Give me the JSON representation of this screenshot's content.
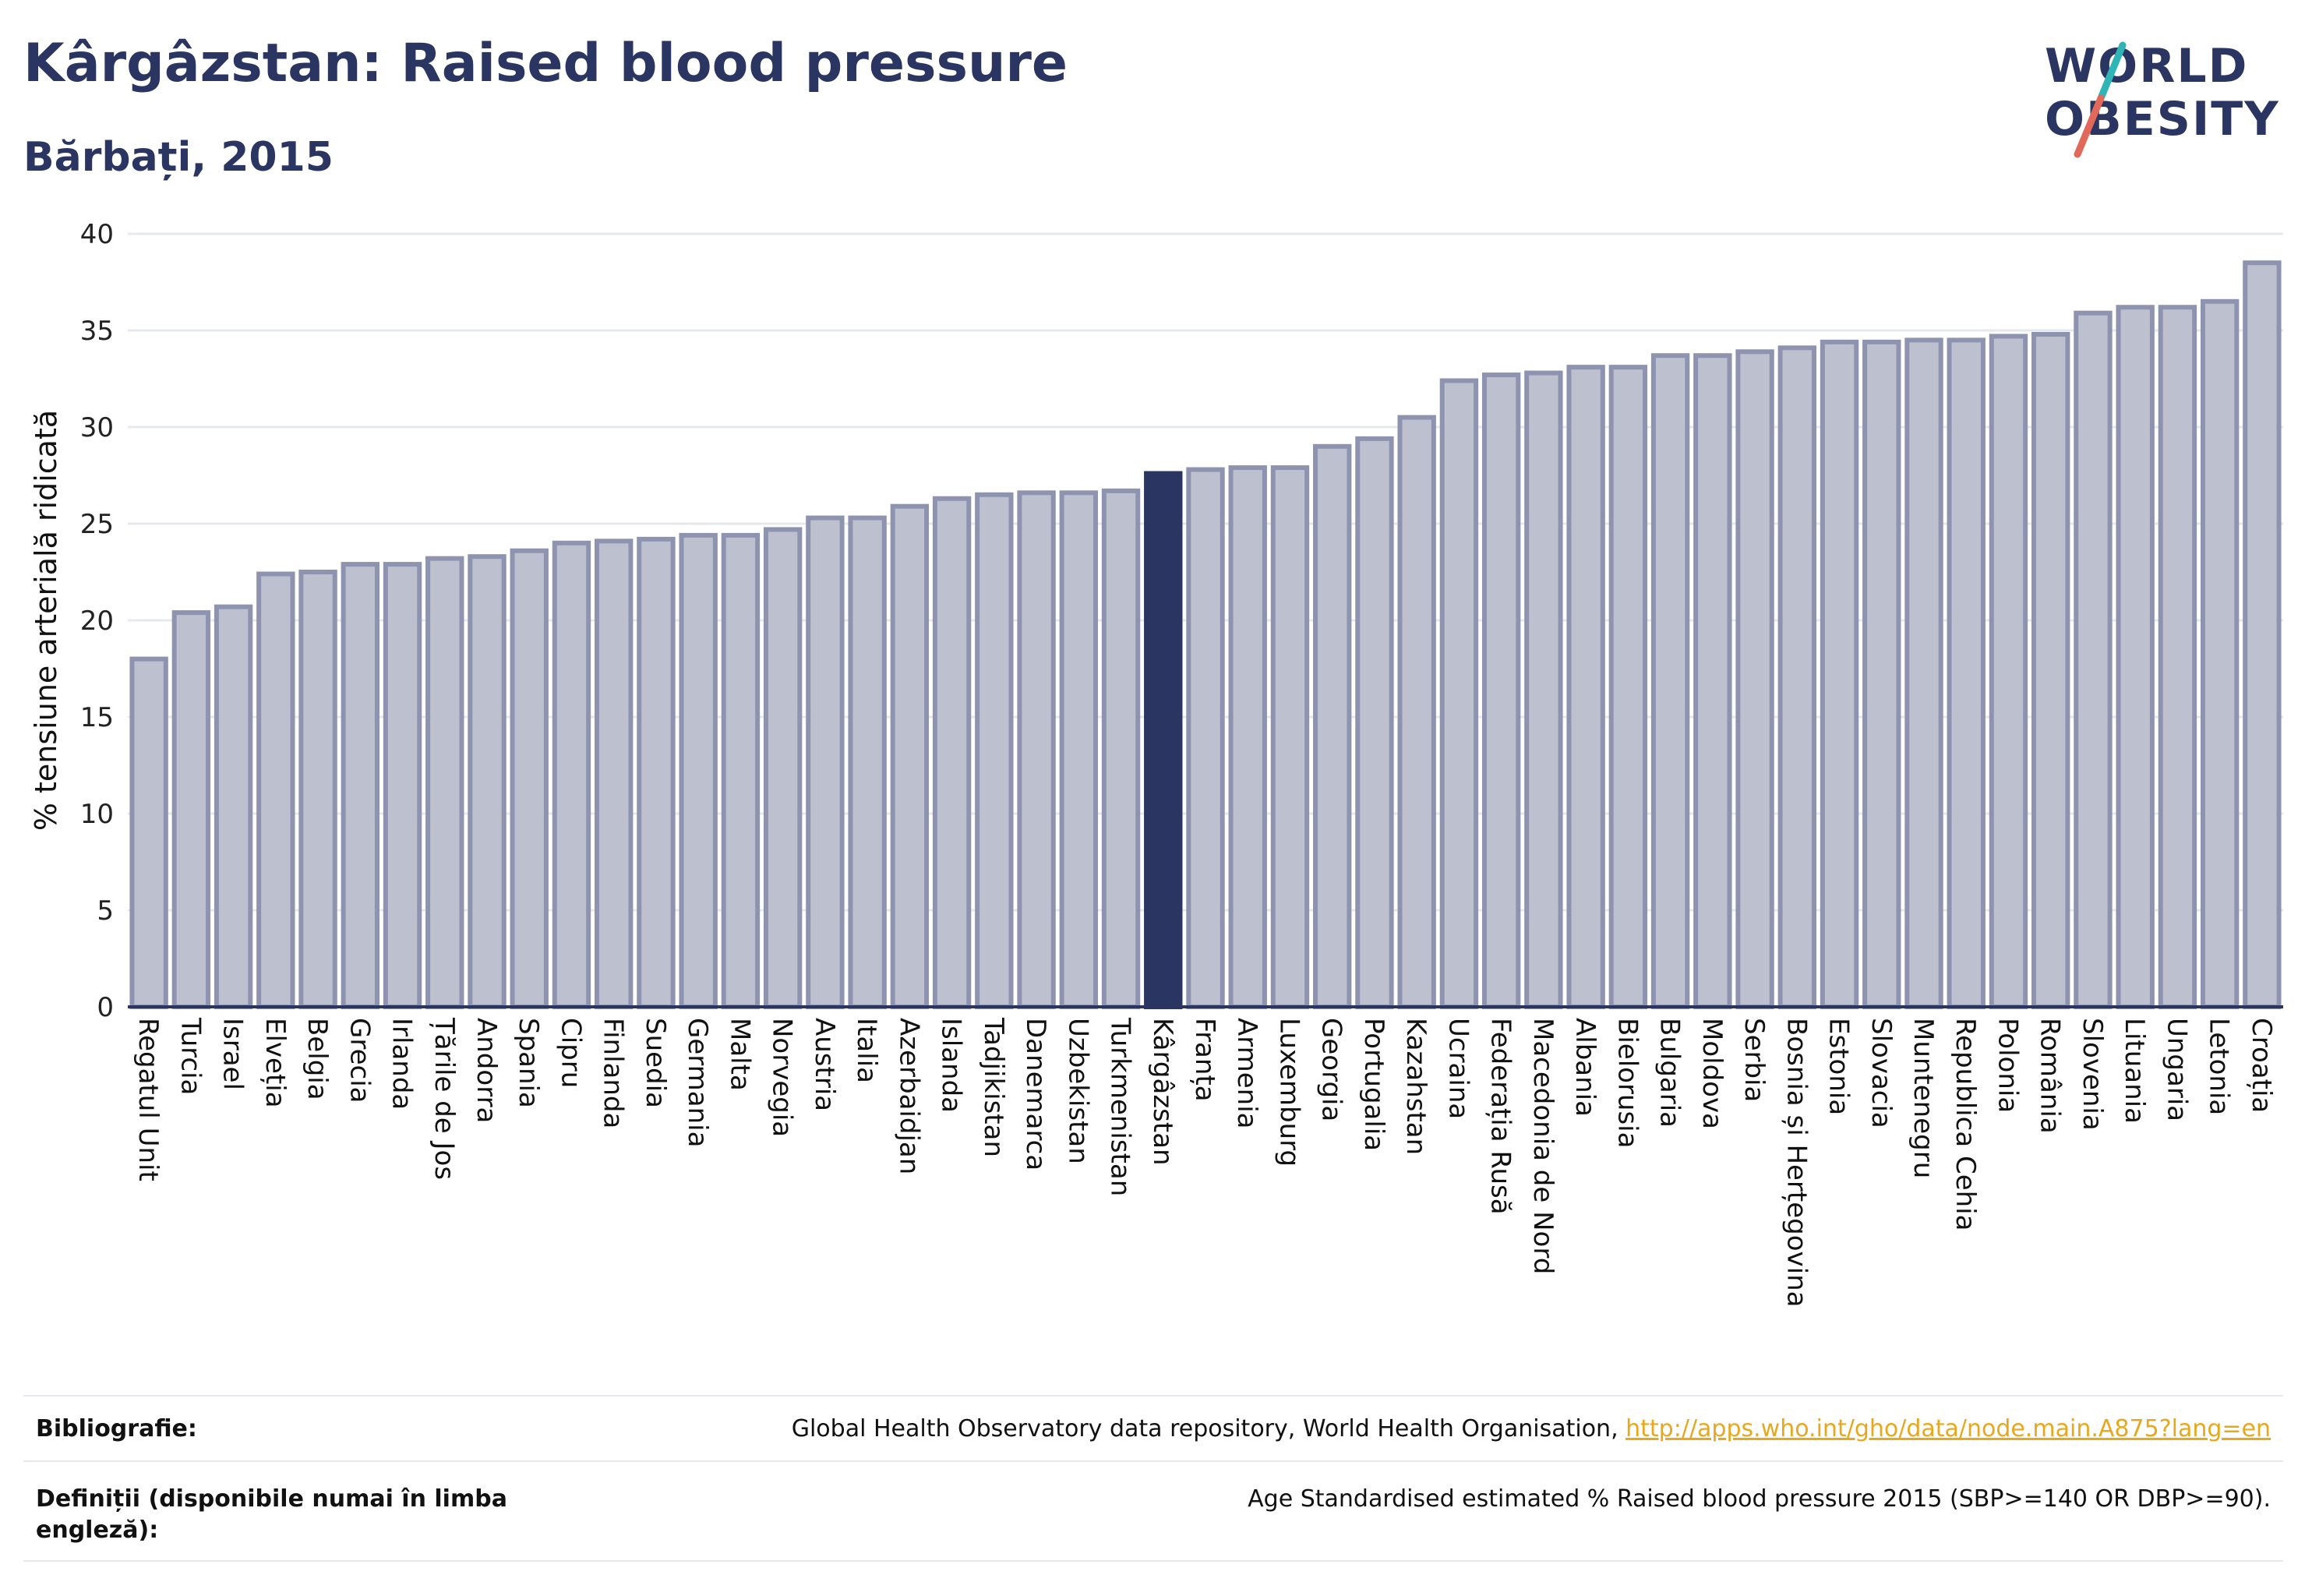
{
  "header": {
    "title": "Kârgâzstan: Raised blood pressure",
    "subtitle": "Bărbați, 2015"
  },
  "logo": {
    "line1": "WORLD",
    "line2": "OBESITY"
  },
  "colors": {
    "highlight": "#2b3561",
    "bar_fill": "#bcc0cf",
    "bar_stroke": "#8e94b0",
    "grid": "#e6e8ef",
    "logo_teal": "#2fb5b5",
    "logo_coral": "#e2685a",
    "link": "#e8a81d"
  },
  "chart_data": {
    "type": "bar",
    "title": "",
    "ylabel": "% tensiune arterială ridicată",
    "xlabel": "",
    "ylim": [
      0,
      40
    ],
    "yticks": [
      0,
      5,
      10,
      15,
      20,
      25,
      30,
      35,
      40
    ],
    "grid": true,
    "highlight": "Kârgâzstan",
    "categories": [
      "Regatul Unit",
      "Turcia",
      "Israel",
      "Elveția",
      "Belgia",
      "Grecia",
      "Irlanda",
      "Țările de Jos",
      "Andorra",
      "Spania",
      "Cipru",
      "Finlanda",
      "Suedia",
      "Germania",
      "Malta",
      "Norvegia",
      "Austria",
      "Italia",
      "Azerbaidjan",
      "Islanda",
      "Tadjikistan",
      "Danemarca",
      "Uzbekistan",
      "Turkmenistan",
      "Kârgâzstan",
      "Franța",
      "Armenia",
      "Luxemburg",
      "Georgia",
      "Portugalia",
      "Kazahstan",
      "Ucraina",
      "Federația Rusă",
      "Macedonia de Nord",
      "Albania",
      "Bielorusia",
      "Bulgaria",
      "Moldova",
      "Serbia",
      "Bosnia și Herțegovina",
      "Estonia",
      "Slovacia",
      "Muntenegru",
      "Republica Cehia",
      "Polonia",
      "România",
      "Slovenia",
      "Lituania",
      "Ungaria",
      "Letonia",
      "Croația"
    ],
    "values": [
      18.0,
      20.4,
      20.7,
      22.4,
      22.5,
      22.9,
      22.9,
      23.2,
      23.3,
      23.6,
      24.0,
      24.1,
      24.2,
      24.4,
      24.4,
      24.7,
      25.3,
      25.3,
      25.9,
      26.3,
      26.5,
      26.6,
      26.6,
      26.7,
      27.6,
      27.8,
      27.9,
      27.9,
      29.0,
      29.4,
      30.5,
      32.4,
      32.7,
      32.8,
      33.1,
      33.1,
      33.7,
      33.7,
      33.9,
      34.1,
      34.4,
      34.4,
      34.5,
      34.5,
      34.7,
      34.8,
      35.9,
      36.2,
      36.2,
      36.5,
      38.5
    ]
  },
  "footer": {
    "bibliography_label": "Bibliografie:",
    "bibliography_text": "Global Health Observatory data repository, World Health Organisation, ",
    "bibliography_link": "http://apps.who.int/gho/data/node.main.A875?lang=en",
    "definitions_label": "Definiții (disponibile numai în limba engleză):",
    "definitions_text": "Age Standardised estimated % Raised blood pressure 2015 (SBP>=140 OR DBP>=90)."
  }
}
